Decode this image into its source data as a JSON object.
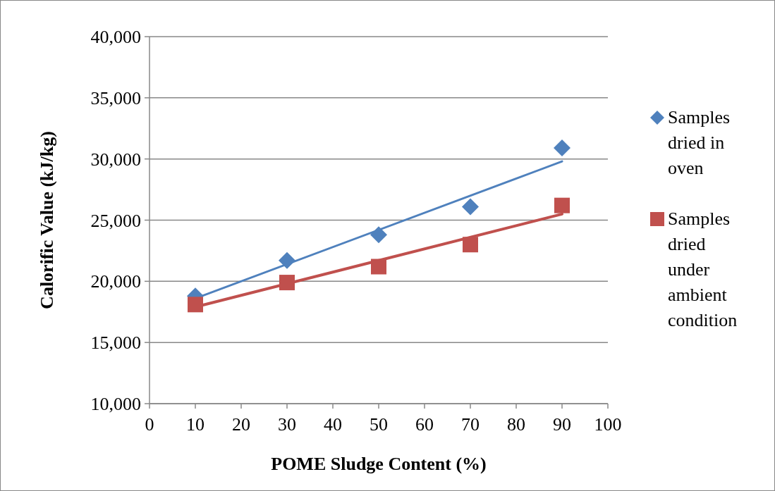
{
  "chart_data": {
    "type": "scatter",
    "xlabel": "POME Sludge Content (%)",
    "ylabel": "Calorific Value (kJ/kg)",
    "xlim": [
      0,
      100
    ],
    "xticks": [
      0,
      10,
      20,
      30,
      40,
      50,
      60,
      70,
      80,
      90,
      100
    ],
    "ylim": [
      10000,
      40000
    ],
    "yticks": [
      {
        "value": 10000,
        "label": "10,000"
      },
      {
        "value": 15000,
        "label": "15,000"
      },
      {
        "value": 20000,
        "label": "20,000"
      },
      {
        "value": 25000,
        "label": "25,000"
      },
      {
        "value": 30000,
        "label": "30,000"
      },
      {
        "value": 35000,
        "label": "35,000"
      },
      {
        "value": 40000,
        "label": "40,000"
      }
    ],
    "grid": "y",
    "legend": "right",
    "series": [
      {
        "name": "Samples dried in oven",
        "type": "scatter",
        "marker": "diamond",
        "color": "#4f81bd",
        "x": [
          10,
          30,
          50,
          70,
          90
        ],
        "values": [
          18800,
          21700,
          23800,
          26100,
          30900
        ]
      },
      {
        "name": "Samples dried under ambient condition",
        "type": "scatter",
        "marker": "square",
        "color": "#c0504d",
        "x": [
          10,
          30,
          50,
          70,
          90
        ],
        "values": [
          18100,
          19900,
          21200,
          23000,
          26200
        ]
      },
      {
        "type": "line",
        "color": "#4f81bd",
        "x": [
          10,
          90
        ],
        "values": [
          18600,
          29800
        ]
      },
      {
        "type": "line",
        "color": "#c0504d",
        "x": [
          10,
          90
        ],
        "values": [
          17900,
          25500
        ]
      }
    ]
  }
}
